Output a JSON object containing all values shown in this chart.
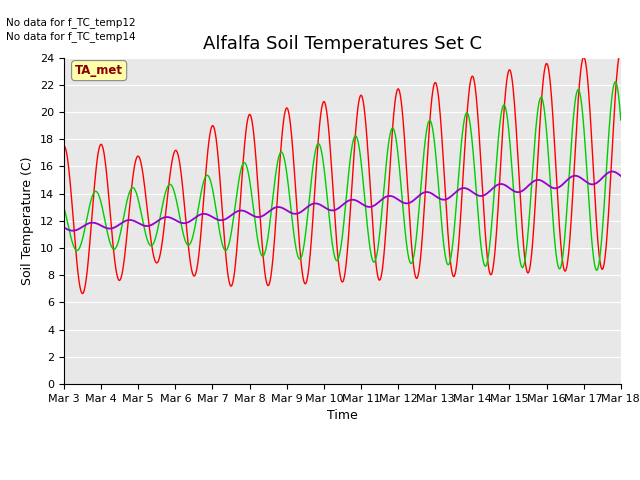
{
  "title": "Alfalfa Soil Temperatures Set C",
  "xlabel": "Time",
  "ylabel": "Soil Temperature (C)",
  "no_data_text": [
    "No data for f_TC_temp12",
    "No data for f_TC_temp14"
  ],
  "legend_label": "TA_met",
  "ylim": [
    0,
    24
  ],
  "yticks": [
    0,
    2,
    4,
    6,
    8,
    10,
    12,
    14,
    16,
    18,
    20,
    22,
    24
  ],
  "xtick_labels": [
    "Mar 3",
    "Mar 4",
    "Mar 5",
    "Mar 6",
    "Mar 7",
    "Mar 8",
    "Mar 9",
    "Mar 10",
    "Mar 11",
    "Mar 12",
    "Mar 13",
    "Mar 14",
    "Mar 15",
    "Mar 16",
    "Mar 17",
    "Mar 18"
  ],
  "bg_color": "#e8e8e8",
  "line_2cm_color": "#ff0000",
  "line_8cm_color": "#00cc00",
  "line_32cm_color": "#9900cc",
  "title_fontsize": 13,
  "axis_label_fontsize": 9,
  "tick_fontsize": 8
}
